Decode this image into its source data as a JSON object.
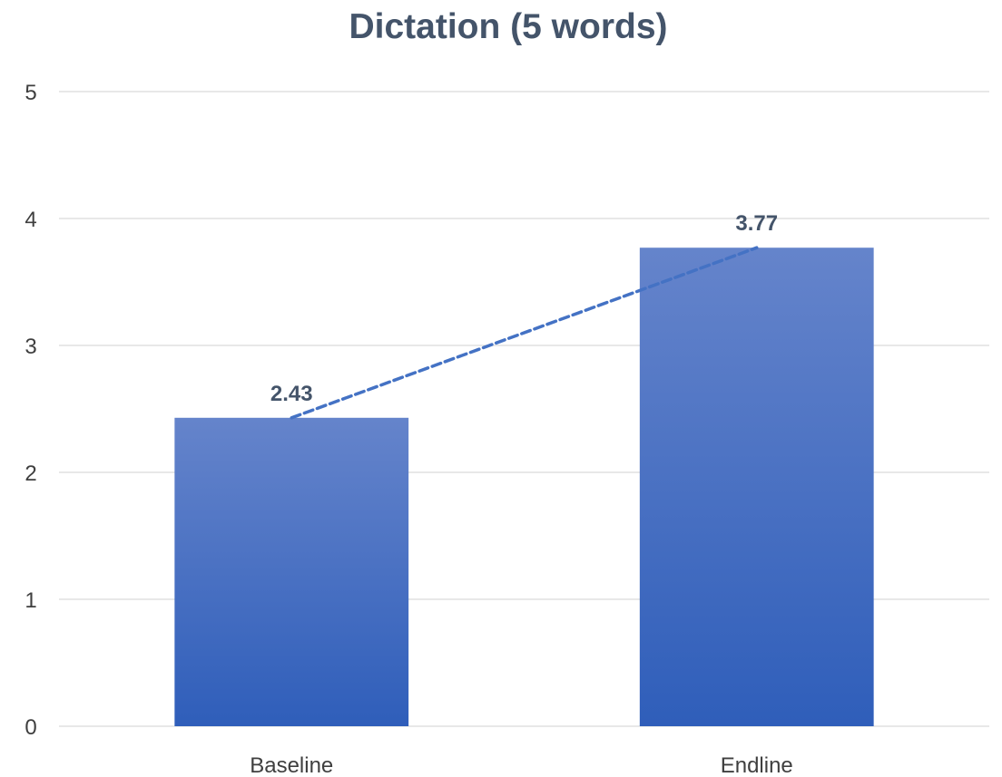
{
  "chart_data": {
    "type": "bar",
    "title": "Dictation (5 words)",
    "xlabel": "",
    "ylabel": "",
    "categories": [
      "Baseline",
      "Endline"
    ],
    "values": [
      2.43,
      3.77
    ],
    "data_labels": [
      "2.43",
      "3.77"
    ],
    "ylim": [
      0,
      5
    ],
    "yticks": [
      0,
      1,
      2,
      3,
      4,
      5
    ],
    "ytick_labels": [
      "0",
      "1",
      "2",
      "3",
      "4",
      "5"
    ],
    "grid": true,
    "legend": "none",
    "trendline": {
      "style": "dashed",
      "type": "linear"
    },
    "colors": {
      "bar_top": "#6584CB",
      "bar_bottom": "#2F5EBA",
      "trendline": "#4472C4",
      "title": "#44546A",
      "data_label": "#44546A",
      "tick": "#3F3F3F",
      "grid": "#D9D9D9"
    }
  }
}
